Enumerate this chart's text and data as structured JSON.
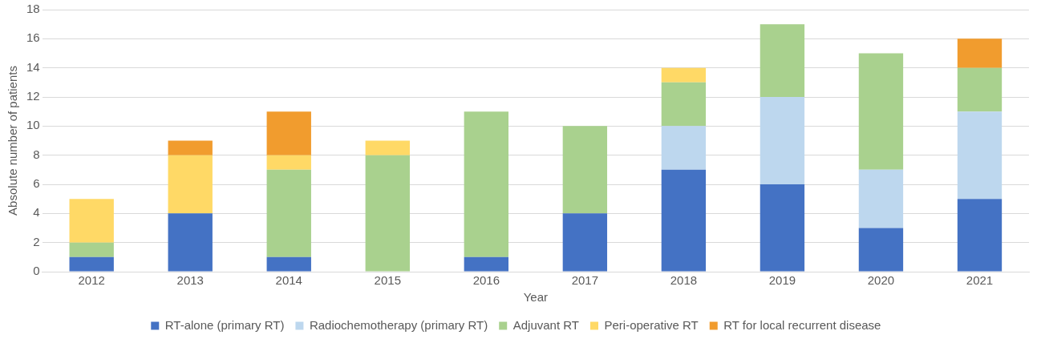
{
  "chart_data": {
    "type": "bar",
    "stacked": true,
    "xlabel": "Year",
    "ylabel": "Absolute number of patients",
    "categories": [
      "2012",
      "2013",
      "2014",
      "2015",
      "2016",
      "2017",
      "2018",
      "2019",
      "2020",
      "2021"
    ],
    "series": [
      {
        "name": "RT-alone (primary RT)",
        "color": "#4472c4",
        "values": [
          1,
          4,
          1,
          0,
          1,
          4,
          7,
          6,
          3,
          5
        ]
      },
      {
        "name": "Radiochemotherapy (primary RT)",
        "color": "#bdd7ee",
        "values": [
          0,
          0,
          0,
          0,
          0,
          0,
          3,
          6,
          4,
          6
        ]
      },
      {
        "name": "Adjuvant RT",
        "color": "#a9d18e",
        "values": [
          1,
          0,
          6,
          8,
          10,
          6,
          3,
          5,
          8,
          3
        ]
      },
      {
        "name": "Peri-operative RT",
        "color": "#ffd966",
        "values": [
          3,
          4,
          1,
          1,
          0,
          0,
          1,
          0,
          0,
          0
        ]
      },
      {
        "name": "RT for local recurrent disease",
        "color": "#f19c2e",
        "values": [
          0,
          1,
          3,
          0,
          0,
          0,
          0,
          0,
          0,
          2
        ]
      }
    ],
    "ylim": [
      0,
      18
    ],
    "yticks": [
      0,
      2,
      4,
      6,
      8,
      10,
      12,
      14,
      16,
      18
    ],
    "grid": "y",
    "legend": "bottom"
  }
}
